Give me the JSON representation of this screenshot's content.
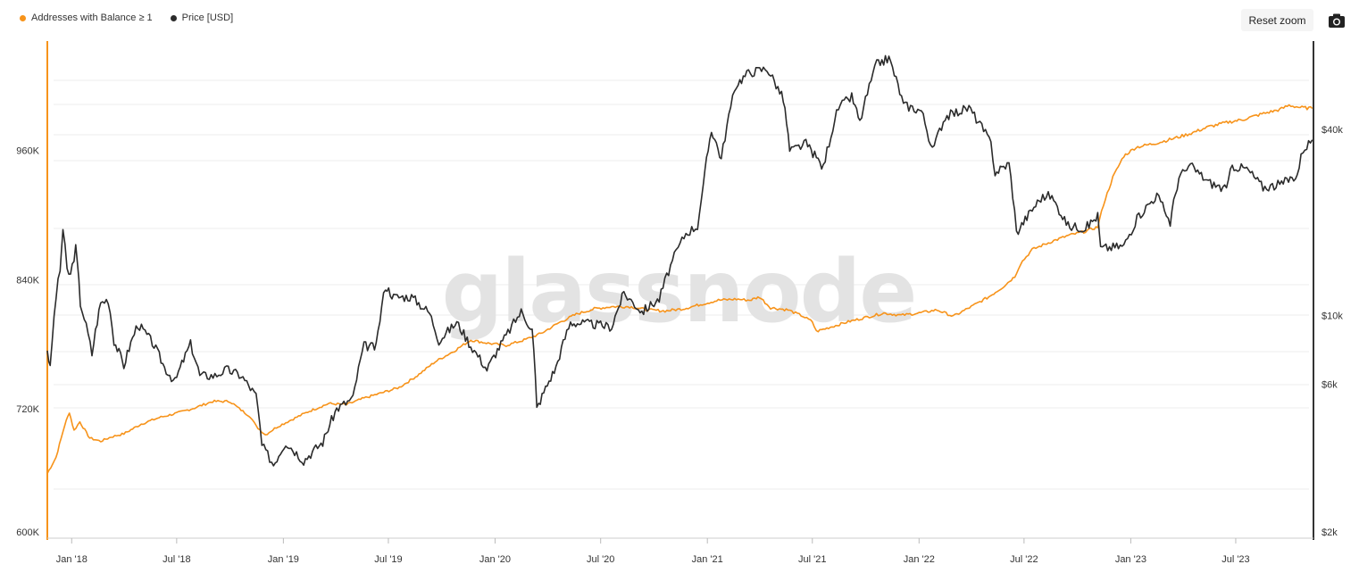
{
  "toolbar": {
    "reset_zoom_label": "Reset zoom",
    "export_icon": "camera-icon"
  },
  "watermark": "glassnode",
  "colors": {
    "addresses": "#f7931a",
    "price": "#2b2b2b",
    "grid": "#ececec",
    "left_axis": "#f7931a",
    "right_axis": "#333333"
  },
  "chart_data": {
    "type": "line",
    "legend_position": "top-left",
    "grid": true,
    "x_ticks": [
      "Jan '18",
      "Jul '18",
      "Jan '19",
      "Jul '19",
      "Jan '20",
      "Jul '20",
      "Jan '21",
      "Jul '21",
      "Jan '22",
      "Jul '22",
      "Jan '23",
      "Jul '23"
    ],
    "y_left": {
      "ticks": [
        "600K",
        "720K",
        "840K",
        "960K"
      ],
      "range": [
        600000,
        1060000
      ]
    },
    "y_right": {
      "ticks": [
        "$2k",
        "$6k",
        "$10k",
        "$40k"
      ],
      "scale": "log"
    },
    "series": [
      {
        "name": "Addresses with Balance ≥ 1",
        "axis": "left",
        "points": [
          [
            "2017-11-20",
            660000
          ],
          [
            "2017-12-05",
            675000
          ],
          [
            "2017-12-20",
            705000
          ],
          [
            "2017-12-28",
            717000
          ],
          [
            "2018-01-05",
            700000
          ],
          [
            "2018-01-15",
            708000
          ],
          [
            "2018-02-01",
            693000
          ],
          [
            "2018-02-20",
            690000
          ],
          [
            "2018-03-10",
            694000
          ],
          [
            "2018-04-01",
            697000
          ],
          [
            "2018-05-01",
            706000
          ],
          [
            "2018-06-01",
            712000
          ],
          [
            "2018-07-01",
            716000
          ],
          [
            "2018-08-01",
            721000
          ],
          [
            "2018-09-01",
            727000
          ],
          [
            "2018-10-01",
            727000
          ],
          [
            "2018-10-20",
            719000
          ],
          [
            "2018-11-05",
            713000
          ],
          [
            "2018-11-15",
            704000
          ],
          [
            "2018-12-01",
            696000
          ],
          [
            "2018-12-20",
            703000
          ],
          [
            "2019-01-15",
            710000
          ],
          [
            "2019-02-15",
            718000
          ],
          [
            "2019-03-20",
            725000
          ],
          [
            "2019-04-20",
            724000
          ],
          [
            "2019-05-20",
            730000
          ],
          [
            "2019-06-20",
            735000
          ],
          [
            "2019-07-20",
            740000
          ],
          [
            "2019-08-20",
            751000
          ],
          [
            "2019-09-20",
            764000
          ],
          [
            "2019-10-20",
            773000
          ],
          [
            "2019-11-20",
            784000
          ],
          [
            "2019-12-20",
            781000
          ],
          [
            "2020-01-20",
            779000
          ],
          [
            "2020-02-20",
            784000
          ],
          [
            "2020-03-20",
            790000
          ],
          [
            "2020-04-20",
            800000
          ],
          [
            "2020-05-20",
            808000
          ],
          [
            "2020-06-20",
            813000
          ],
          [
            "2020-07-20",
            815000
          ],
          [
            "2020-08-20",
            815000
          ],
          [
            "2020-09-20",
            812000
          ],
          [
            "2020-10-20",
            811000
          ],
          [
            "2020-11-20",
            813000
          ],
          [
            "2020-12-20",
            817000
          ],
          [
            "2021-01-20",
            821000
          ],
          [
            "2021-02-20",
            822000
          ],
          [
            "2021-03-15",
            821000
          ],
          [
            "2021-04-01",
            824000
          ],
          [
            "2021-04-20",
            814000
          ],
          [
            "2021-05-20",
            812000
          ],
          [
            "2021-06-15",
            806000
          ],
          [
            "2021-07-01",
            801000
          ],
          [
            "2021-07-08",
            792000
          ],
          [
            "2021-08-01",
            796000
          ],
          [
            "2021-09-01",
            801000
          ],
          [
            "2021-10-01",
            805000
          ],
          [
            "2021-11-01",
            809000
          ],
          [
            "2021-12-01",
            807000
          ],
          [
            "2022-01-01",
            809000
          ],
          [
            "2022-02-01",
            812000
          ],
          [
            "2022-03-01",
            806000
          ],
          [
            "2022-04-01",
            815000
          ],
          [
            "2022-05-01",
            824000
          ],
          [
            "2022-05-25",
            833000
          ],
          [
            "2022-06-15",
            843000
          ],
          [
            "2022-06-25",
            855000
          ],
          [
            "2022-07-15",
            868000
          ],
          [
            "2022-08-15",
            875000
          ],
          [
            "2022-09-15",
            881000
          ],
          [
            "2022-10-15",
            885000
          ],
          [
            "2022-11-05",
            889000
          ],
          [
            "2022-11-15",
            910000
          ],
          [
            "2022-12-01",
            935000
          ],
          [
            "2022-12-20",
            955000
          ],
          [
            "2023-01-10",
            963000
          ],
          [
            "2023-02-15",
            967000
          ],
          [
            "2023-03-15",
            971000
          ],
          [
            "2023-04-15",
            976000
          ],
          [
            "2023-05-15",
            982000
          ],
          [
            "2023-06-15",
            986000
          ],
          [
            "2023-07-15",
            989000
          ],
          [
            "2023-08-15",
            994000
          ],
          [
            "2023-09-15",
            998000
          ],
          [
            "2023-10-01",
            1002000
          ],
          [
            "2023-10-20",
            1000000
          ],
          [
            "2023-11-10",
            999000
          ]
        ]
      },
      {
        "name": "Price [USD]",
        "axis": "right",
        "points": [
          [
            "2017-11-20",
            7800
          ],
          [
            "2017-11-25",
            6700
          ],
          [
            "2017-12-05",
            11500
          ],
          [
            "2017-12-12",
            14000
          ],
          [
            "2017-12-17",
            19000
          ],
          [
            "2017-12-24",
            14000
          ],
          [
            "2017-12-30",
            13500
          ],
          [
            "2018-01-08",
            16500
          ],
          [
            "2018-01-16",
            11000
          ],
          [
            "2018-02-05",
            7500
          ],
          [
            "2018-02-20",
            11000
          ],
          [
            "2018-03-05",
            11300
          ],
          [
            "2018-03-15",
            8300
          ],
          [
            "2018-04-01",
            6900
          ],
          [
            "2018-04-25",
            9400
          ],
          [
            "2018-05-20",
            8200
          ],
          [
            "2018-06-10",
            6800
          ],
          [
            "2018-06-28",
            6100
          ],
          [
            "2018-07-25",
            8100
          ],
          [
            "2018-08-10",
            6400
          ],
          [
            "2018-09-05",
            6400
          ],
          [
            "2018-09-25",
            6700
          ],
          [
            "2018-10-20",
            6400
          ],
          [
            "2018-11-15",
            5500
          ],
          [
            "2018-11-25",
            3800
          ],
          [
            "2018-12-15",
            3300
          ],
          [
            "2019-01-05",
            3900
          ],
          [
            "2019-02-05",
            3400
          ],
          [
            "2019-03-10",
            3900
          ],
          [
            "2019-04-03",
            5000
          ],
          [
            "2019-05-01",
            5400
          ],
          [
            "2019-05-20",
            8000
          ],
          [
            "2019-06-10",
            7900
          ],
          [
            "2019-06-26",
            12500
          ],
          [
            "2019-07-10",
            11500
          ],
          [
            "2019-08-10",
            11500
          ],
          [
            "2019-09-10",
            10200
          ],
          [
            "2019-09-26",
            8300
          ],
          [
            "2019-10-27",
            9500
          ],
          [
            "2019-11-20",
            8000
          ],
          [
            "2019-12-18",
            6700
          ],
          [
            "2020-01-20",
            8600
          ],
          [
            "2020-02-15",
            10300
          ],
          [
            "2020-03-05",
            9000
          ],
          [
            "2020-03-13",
            5000
          ],
          [
            "2020-04-15",
            6800
          ],
          [
            "2020-05-10",
            9500
          ],
          [
            "2020-06-15",
            9400
          ],
          [
            "2020-07-20",
            9200
          ],
          [
            "2020-08-10",
            11800
          ],
          [
            "2020-09-10",
            10300
          ],
          [
            "2020-10-10",
            11300
          ],
          [
            "2020-11-05",
            15500
          ],
          [
            "2020-11-25",
            18500
          ],
          [
            "2020-12-15",
            19500
          ],
          [
            "2020-12-25",
            26000
          ],
          [
            "2021-01-08",
            40000
          ],
          [
            "2021-01-25",
            32000
          ],
          [
            "2021-02-20",
            56000
          ],
          [
            "2021-03-13",
            61000
          ],
          [
            "2021-04-14",
            63000
          ],
          [
            "2021-05-12",
            50000
          ],
          [
            "2021-05-23",
            34000
          ],
          [
            "2021-06-20",
            36000
          ],
          [
            "2021-07-20",
            30000
          ],
          [
            "2021-08-15",
            47000
          ],
          [
            "2021-09-07",
            51000
          ],
          [
            "2021-09-21",
            42000
          ],
          [
            "2021-10-20",
            65000
          ],
          [
            "2021-11-10",
            68000
          ],
          [
            "2021-12-05",
            48000
          ],
          [
            "2022-01-05",
            46000
          ],
          [
            "2022-01-24",
            34000
          ],
          [
            "2022-02-15",
            44000
          ],
          [
            "2022-03-28",
            47000
          ],
          [
            "2022-05-05",
            36000
          ],
          [
            "2022-05-12",
            29000
          ],
          [
            "2022-06-05",
            31000
          ],
          [
            "2022-06-18",
            18500
          ],
          [
            "2022-07-30",
            24000
          ],
          [
            "2022-08-15",
            24500
          ],
          [
            "2022-09-15",
            19500
          ],
          [
            "2022-10-15",
            19200
          ],
          [
            "2022-11-05",
            21000
          ],
          [
            "2022-11-10",
            16500
          ],
          [
            "2022-12-20",
            16800
          ],
          [
            "2023-01-15",
            21000
          ],
          [
            "2023-02-15",
            24500
          ],
          [
            "2023-03-10",
            20000
          ],
          [
            "2023-03-25",
            28000
          ],
          [
            "2023-04-14",
            30500
          ],
          [
            "2023-05-15",
            27000
          ],
          [
            "2023-06-15",
            25500
          ],
          [
            "2023-06-25",
            30500
          ],
          [
            "2023-07-20",
            29800
          ],
          [
            "2023-08-17",
            26000
          ],
          [
            "2023-09-15",
            26500
          ],
          [
            "2023-10-15",
            28500
          ],
          [
            "2023-10-25",
            34500
          ],
          [
            "2023-11-10",
            37000
          ]
        ]
      }
    ]
  }
}
